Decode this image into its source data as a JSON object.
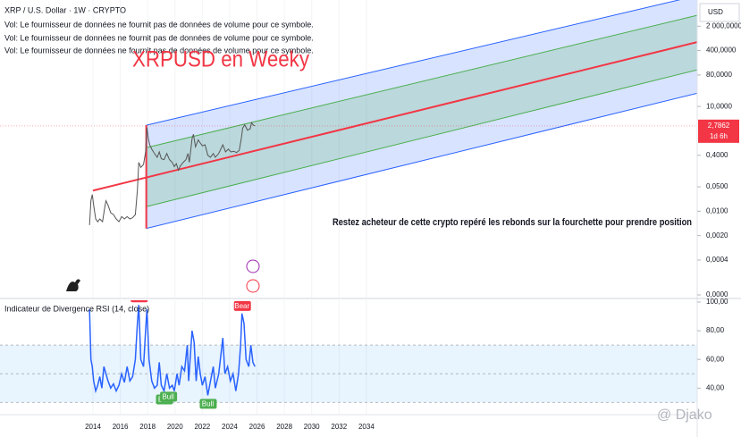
{
  "watermark": "@ Djako",
  "chart_data": [
    {
      "type": "line",
      "title": "XRP / U.S. Dollar · 1W · CRYPTO",
      "notes": [
        "Vol: Le fournisseur de données ne fournit pas de données de volume pour ce symbole.",
        "Vol: Le fournisseur de données ne fournit pas de données de volume pour ce symbole.",
        "Vol: Le fournisseur de données ne fournit pas de données de volume pour ce symbole."
      ],
      "headline": "XRPUSD en Weeky",
      "annotation": "Restez acheteur de cette crypto repéré les rebonds sur la fourchette pour prendre position",
      "y_label": "USD",
      "log_scale": true,
      "xlim": [
        2007.2,
        2058.2
      ],
      "xticks": [
        2014,
        2016,
        2018,
        2020,
        2022,
        2024,
        2026,
        2028,
        2030,
        2032,
        2034
      ],
      "ylim": [
        4e-05,
        10000
      ],
      "yticks": [
        {
          "value": 2000,
          "label": "2 000,0000"
        },
        {
          "value": 400,
          "label": "400,0000"
        },
        {
          "value": 80,
          "label": "80,0000"
        },
        {
          "value": 10,
          "label": "10,0000"
        },
        {
          "value": 0.4,
          "label": "0,4000"
        },
        {
          "value": 0.05,
          "label": "0,0500"
        },
        {
          "value": 0.01,
          "label": "0,0100"
        },
        {
          "value": 0.002,
          "label": "0,0020"
        },
        {
          "value": 0.0004,
          "label": "0,0004"
        },
        {
          "value": 4e-05,
          "label": "0,0000"
        }
      ],
      "x": [
        2013.75,
        2013.85,
        2013.95,
        2014.05,
        2014.2,
        2014.35,
        2014.5,
        2014.7,
        2014.85,
        2014.95,
        2015.1,
        2015.3,
        2015.5,
        2015.7,
        2015.9,
        2016.1,
        2016.3,
        2016.5,
        2016.7,
        2016.9,
        2017.1,
        2017.25,
        2017.35,
        2017.5,
        2017.7,
        2017.85,
        2017.95,
        2018.05,
        2018.15,
        2018.3,
        2018.5,
        2018.7,
        2018.85,
        2019.0,
        2019.2,
        2019.4,
        2019.6,
        2019.8,
        2019.95,
        2020.1,
        2020.25,
        2020.4,
        2020.6,
        2020.8,
        2020.95,
        2021.05,
        2021.25,
        2021.35,
        2021.5,
        2021.7,
        2021.85,
        2022.0,
        2022.2,
        2022.4,
        2022.6,
        2022.8,
        2022.95,
        2023.2,
        2023.5,
        2023.7,
        2023.9,
        2024.1,
        2024.3,
        2024.5,
        2024.7,
        2024.85,
        2024.95,
        2025.1,
        2025.3,
        2025.5,
        2025.6,
        2025.75,
        2025.85
      ],
      "series": [
        {
          "color": "#555555",
          "values": [
            0.004,
            0.02,
            0.03,
            0.015,
            0.006,
            0.005,
            0.006,
            0.005,
            0.012,
            0.02,
            0.015,
            0.009,
            0.008,
            0.006,
            0.005,
            0.007,
            0.006,
            0.007,
            0.006,
            0.0065,
            0.008,
            0.04,
            0.25,
            0.18,
            0.22,
            0.5,
            2.5,
            1.2,
            0.8,
            0.6,
            0.45,
            0.35,
            0.5,
            0.32,
            0.3,
            0.45,
            0.3,
            0.25,
            0.19,
            0.23,
            0.15,
            0.2,
            0.25,
            0.3,
            0.45,
            0.25,
            1.2,
            1.6,
            0.7,
            1.1,
            0.9,
            0.75,
            0.8,
            0.4,
            0.35,
            0.45,
            0.35,
            0.45,
            0.8,
            0.5,
            0.6,
            0.5,
            0.52,
            0.48,
            0.55,
            1.2,
            2.4,
            3.0,
            2.1,
            2.3,
            3.4,
            2.9,
            2.79
          ]
        }
      ],
      "last_price": {
        "value": 2.7862,
        "label": "2,7862",
        "color": "#f23645"
      },
      "countdown": "1d 6h",
      "channel": [
        {
          "color": "#2962ff",
          "x": [
            2017.9,
            2058.2
          ],
          "values": [
            2.9,
            15000
          ]
        },
        {
          "color": "#4caf50",
          "x": [
            2017.9,
            2058.2
          ],
          "values": [
            0.66,
            4100
          ]
        },
        {
          "color": "#f23645",
          "x": [
            2014,
            2058.2
          ],
          "values": [
            0.039,
            700
          ]
        },
        {
          "color": "#4caf50",
          "x": [
            2017.9,
            2058.2
          ],
          "values": [
            0.0135,
            112
          ]
        },
        {
          "color": "#2962ff",
          "x": [
            2017.9,
            2058.2
          ],
          "values": [
            0.0032,
            24
          ]
        },
        {
          "color": "#f23645",
          "x": [
            2017.9,
            2017.9
          ],
          "values": [
            2.9,
            0.0032
          ]
        }
      ]
    },
    {
      "type": "line",
      "title": "Indicateur de Divergence RSI (14, close)",
      "xlim": [
        2007.2,
        2058.2
      ],
      "xticks": [
        2014,
        2016,
        2018,
        2020,
        2022,
        2024,
        2026,
        2028,
        2030,
        2032,
        2034
      ],
      "ylim": [
        24,
        100
      ],
      "yticks": [
        {
          "value": 100,
          "label": "100,00"
        },
        {
          "value": 80,
          "label": "80,00"
        },
        {
          "value": 60,
          "label": "60,00"
        },
        {
          "value": 40,
          "label": "40,00"
        }
      ],
      "band": [
        30,
        70
      ],
      "midline": 50,
      "x": [
        2013.75,
        2013.85,
        2013.95,
        2014.05,
        2014.2,
        2014.35,
        2014.5,
        2014.65,
        2014.8,
        2014.95,
        2015.1,
        2015.3,
        2015.5,
        2015.7,
        2015.9,
        2016.1,
        2016.3,
        2016.5,
        2016.7,
        2016.9,
        2017.1,
        2017.25,
        2017.35,
        2017.5,
        2017.7,
        2017.85,
        2017.95,
        2018.1,
        2018.3,
        2018.5,
        2018.7,
        2018.85,
        2019.0,
        2019.2,
        2019.4,
        2019.6,
        2019.8,
        2019.95,
        2020.15,
        2020.3,
        2020.5,
        2020.7,
        2020.9,
        2021.0,
        2021.25,
        2021.4,
        2021.55,
        2021.7,
        2021.85,
        2022.0,
        2022.2,
        2022.4,
        2022.6,
        2022.8,
        2022.95,
        2023.2,
        2023.5,
        2023.65,
        2023.85,
        2024.05,
        2024.25,
        2024.45,
        2024.65,
        2024.8,
        2024.9,
        2025.05,
        2025.2,
        2025.4,
        2025.55,
        2025.7,
        2025.85
      ],
      "series": [
        {
          "color": "#2962ff",
          "values": [
            95,
            60,
            55,
            45,
            38,
            42,
            48,
            40,
            55,
            50,
            45,
            40,
            43,
            38,
            42,
            50,
            44,
            55,
            45,
            48,
            60,
            85,
            98,
            60,
            55,
            80,
            95,
            60,
            45,
            40,
            42,
            58,
            42,
            38,
            50,
            40,
            42,
            38,
            50,
            42,
            55,
            52,
            70,
            45,
            80,
            72,
            45,
            62,
            50,
            42,
            48,
            35,
            45,
            55,
            40,
            50,
            75,
            50,
            55,
            45,
            50,
            38,
            50,
            70,
            92,
            85,
            60,
            55,
            70,
            58,
            55
          ]
        }
      ],
      "signals": [
        {
          "label": "Bear",
          "x": 2017.35,
          "value": 98,
          "color": "#f23645"
        },
        {
          "label": "Bull",
          "x": 2019.2,
          "value": 38,
          "color": "#4caf50"
        },
        {
          "label": "Bull",
          "x": 2019.5,
          "value": 40,
          "color": "#4caf50"
        },
        {
          "label": "Bull",
          "x": 2022.4,
          "value": 35,
          "color": "#4caf50"
        },
        {
          "label": "Bear",
          "x": 2024.9,
          "value": 92,
          "color": "#f23645"
        }
      ]
    }
  ]
}
